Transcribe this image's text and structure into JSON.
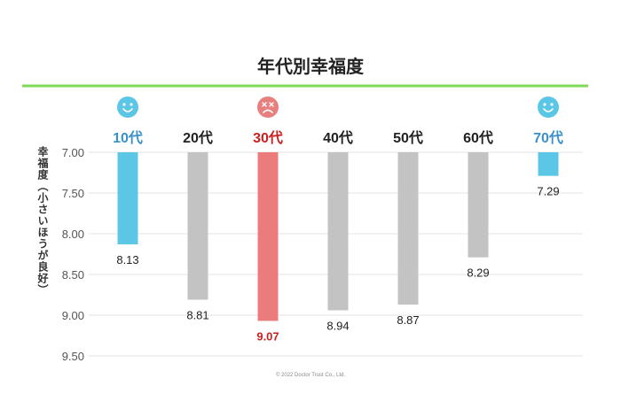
{
  "chart_data": {
    "type": "bar",
    "title": "年代別幸福度",
    "ylabel": "幸福度（小さいほうが良好）",
    "categories": [
      "10代",
      "20代",
      "30代",
      "40代",
      "50代",
      "60代",
      "70代"
    ],
    "values": [
      8.13,
      8.81,
      9.07,
      8.94,
      8.87,
      8.29,
      7.29
    ],
    "value_labels": [
      "8.13",
      "8.81",
      "9.07",
      "8.94",
      "8.87",
      "8.29",
      "7.29"
    ],
    "yticks": [
      "7.00",
      "7.50",
      "8.00",
      "8.50",
      "9.00",
      "9.50"
    ],
    "ylim": [
      7.0,
      9.5
    ],
    "y_inverted": true,
    "grid": true,
    "legend": "none",
    "highlights": {
      "best": [
        "10代",
        "70代"
      ],
      "worst": [
        "30代"
      ]
    },
    "icons": {
      "10代": "smile-face-icon",
      "30代": "sad-face-icon",
      "70代": "smile-face-icon"
    }
  },
  "colors": {
    "title_rule": "#7ed957",
    "good_bar": "#5bc6e6",
    "good_label": "#3a90c8",
    "bad_bar": "#ec7b7c",
    "bad_label": "#cc1f1f",
    "neutral_bar": "#c3c3c3",
    "neutral_label": "#222222",
    "grid": "#e3e3e3",
    "good_icon": "#5bc6e6",
    "bad_icon": "#e77f7f"
  },
  "copyright": "©  2022 Doctor Trust Co., Ltd."
}
